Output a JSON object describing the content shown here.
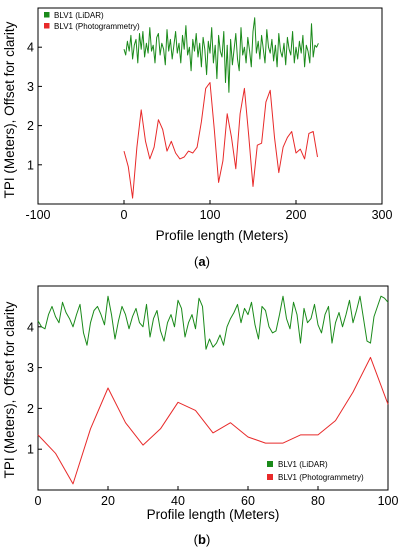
{
  "chart_data": [
    {
      "panel": "(a)",
      "type": "line",
      "xlabel": "Profile length (Meters)",
      "ylabel": "TPI (Meters), Offset for clarity",
      "xlim": [
        -100,
        300
      ],
      "ylim": [
        0,
        5
      ],
      "xticks": [
        "-100",
        "0",
        "100",
        "200",
        "300"
      ],
      "yticks": [
        "1",
        "2",
        "3",
        "4"
      ],
      "legend_position": "top-left",
      "grid": false,
      "series": [
        {
          "name": "BLV1 (LiDAR)",
          "color": "#1a8a1a",
          "x": [
            0,
            2,
            4,
            6,
            8,
            10,
            12,
            14,
            16,
            18,
            20,
            22,
            24,
            26,
            28,
            30,
            32,
            34,
            36,
            38,
            40,
            42,
            44,
            46,
            48,
            50,
            52,
            54,
            56,
            58,
            60,
            62,
            64,
            66,
            68,
            70,
            72,
            74,
            76,
            78,
            80,
            82,
            84,
            86,
            88,
            90,
            92,
            94,
            96,
            98,
            100,
            102,
            104,
            106,
            108,
            110,
            112,
            114,
            116,
            118,
            120,
            122,
            124,
            126,
            128,
            130,
            132,
            134,
            136,
            138,
            140,
            142,
            144,
            146,
            148,
            150,
            152,
            154,
            156,
            158,
            160,
            162,
            164,
            166,
            168,
            170,
            172,
            174,
            176,
            178,
            180,
            182,
            184,
            186,
            188,
            190,
            192,
            194,
            196,
            198,
            200,
            202,
            204,
            206,
            208,
            210,
            212,
            214,
            216,
            218,
            220,
            222,
            224,
            226
          ],
          "values": [
            3.95,
            3.8,
            4.15,
            3.9,
            4.3,
            3.7,
            4.05,
            4.2,
            3.6,
            4.35,
            3.95,
            4.4,
            3.75,
            4.1,
            3.85,
            4.5,
            3.9,
            4.05,
            3.6,
            4.25,
            4.35,
            3.8,
            4.1,
            3.95,
            3.55,
            4.45,
            3.9,
            4.2,
            3.7,
            4.05,
            4.4,
            3.85,
            4.1,
            3.6,
            4.3,
            3.95,
            4.55,
            3.8,
            4.0,
            3.4,
            4.2,
            3.9,
            4.35,
            3.75,
            4.1,
            3.5,
            4.25,
            3.95,
            3.3,
            4.15,
            3.85,
            4.5,
            3.6,
            4.05,
            3.2,
            4.3,
            3.9,
            3.75,
            4.4,
            3.1,
            4.05,
            2.85,
            4.2,
            3.55,
            3.95,
            4.35,
            3.7,
            3.4,
            4.5,
            3.8,
            4.0,
            3.6,
            4.25,
            3.9,
            3.5,
            4.4,
            4.75,
            3.85,
            4.15,
            3.7,
            4.3,
            3.95,
            3.6,
            4.45,
            4.0,
            3.85,
            4.2,
            3.65,
            4.05,
            3.5,
            4.35,
            3.9,
            3.75,
            4.1,
            3.55,
            4.25,
            3.95,
            3.8,
            4.4,
            3.6,
            4.0,
            3.7,
            4.15,
            3.85,
            4.3,
            3.5,
            4.05,
            3.9,
            3.6,
            4.6,
            3.75,
            4.05,
            4.0,
            4.1
          ]
        },
        {
          "name": "BLV1 (Photogrammetry)",
          "color": "#e82a2a",
          "x": [
            0,
            5,
            10,
            15,
            20,
            25,
            30,
            35,
            40,
            45,
            50,
            55,
            60,
            65,
            70,
            75,
            80,
            85,
            90,
            95,
            100,
            105,
            110,
            115,
            120,
            125,
            130,
            135,
            140,
            145,
            150,
            155,
            160,
            165,
            170,
            175,
            180,
            185,
            190,
            195,
            200,
            205,
            210,
            215,
            220,
            225
          ],
          "values": [
            1.35,
            0.95,
            0.15,
            1.45,
            2.4,
            1.6,
            1.15,
            1.45,
            2.15,
            1.9,
            1.35,
            1.6,
            1.3,
            1.15,
            1.2,
            1.35,
            1.3,
            1.45,
            2.1,
            2.95,
            3.1,
            1.9,
            0.55,
            1.1,
            2.3,
            1.7,
            0.9,
            2.3,
            2.95,
            1.75,
            0.45,
            1.5,
            1.55,
            2.6,
            2.9,
            1.7,
            0.8,
            1.45,
            1.7,
            1.85,
            1.3,
            1.4,
            1.15,
            1.8,
            1.85,
            1.2
          ]
        }
      ]
    },
    {
      "panel": "(b)",
      "type": "line",
      "xlabel": "Profile length (Meters)",
      "ylabel": "TPI (Meters), Offset for clarity",
      "xlim": [
        0,
        100
      ],
      "ylim": [
        0,
        5
      ],
      "xticks": [
        "0",
        "20",
        "40",
        "60",
        "80",
        "100"
      ],
      "yticks": [
        "1",
        "2",
        "3",
        "4"
      ],
      "legend_position": "bottom-right",
      "grid": false,
      "series": [
        {
          "name": "BLV1 (LiDAR)",
          "color": "#1a8a1a",
          "x": [
            0,
            1,
            2,
            3,
            4,
            5,
            6,
            7,
            8,
            9,
            10,
            11,
            12,
            13,
            14,
            15,
            16,
            17,
            18,
            19,
            20,
            21,
            22,
            23,
            24,
            25,
            26,
            27,
            28,
            29,
            30,
            31,
            32,
            33,
            34,
            35,
            36,
            37,
            38,
            39,
            40,
            41,
            42,
            43,
            44,
            45,
            46,
            47,
            48,
            49,
            50,
            51,
            52,
            53,
            54,
            55,
            56,
            57,
            58,
            59,
            60,
            61,
            62,
            63,
            64,
            65,
            66,
            67,
            68,
            69,
            70,
            71,
            72,
            73,
            74,
            75,
            76,
            77,
            78,
            79,
            80,
            81,
            82,
            83,
            84,
            85,
            86,
            87,
            88,
            89,
            90,
            91,
            92,
            93,
            94,
            95,
            96,
            97,
            98,
            99,
            100
          ],
          "values": [
            4.15,
            4.0,
            3.95,
            4.3,
            4.5,
            4.25,
            4.1,
            4.6,
            4.35,
            4.2,
            4.0,
            4.3,
            4.55,
            3.85,
            3.55,
            4.1,
            4.4,
            4.5,
            4.3,
            4.05,
            4.75,
            4.3,
            3.7,
            4.15,
            4.5,
            4.3,
            3.95,
            4.25,
            4.45,
            4.1,
            4.0,
            4.55,
            3.75,
            4.2,
            4.4,
            3.9,
            3.65,
            4.1,
            4.3,
            4.0,
            4.65,
            4.45,
            3.75,
            4.1,
            4.3,
            3.95,
            4.7,
            4.5,
            3.45,
            3.7,
            3.5,
            3.6,
            3.8,
            3.55,
            4.0,
            4.2,
            4.35,
            4.55,
            4.1,
            4.45,
            4.3,
            4.6,
            4.05,
            3.7,
            4.5,
            4.4,
            4.0,
            3.85,
            3.9,
            4.3,
            4.75,
            4.2,
            3.95,
            4.6,
            4.3,
            3.6,
            4.45,
            4.1,
            4.2,
            4.55,
            4.05,
            3.85,
            4.3,
            4.5,
            3.6,
            4.1,
            4.35,
            4.0,
            4.3,
            4.65,
            4.1,
            4.4,
            4.75,
            4.2,
            3.65,
            3.6,
            4.25,
            4.5,
            4.75,
            4.7,
            4.6
          ]
        },
        {
          "name": "BLV1 (Photogrammetry)",
          "color": "#e82a2a",
          "x": [
            0,
            5,
            10,
            15,
            20,
            25,
            30,
            35,
            40,
            45,
            50,
            55,
            60,
            65,
            70,
            75,
            80,
            85,
            90,
            95,
            100
          ],
          "values": [
            1.35,
            0.9,
            0.15,
            1.5,
            2.5,
            1.65,
            1.1,
            1.5,
            2.15,
            1.95,
            1.4,
            1.65,
            1.3,
            1.15,
            1.15,
            1.35,
            1.35,
            1.7,
            2.4,
            3.25,
            2.1
          ]
        }
      ]
    }
  ],
  "caption_a": "(a)",
  "caption_b": "(b)"
}
